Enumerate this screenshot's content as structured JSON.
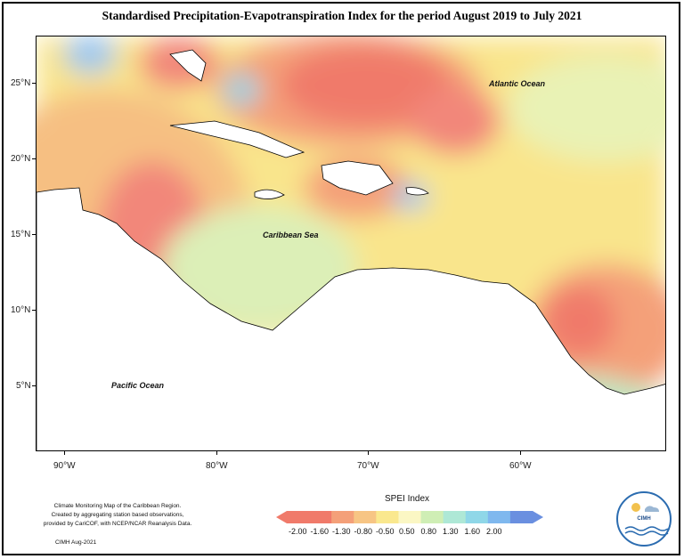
{
  "title": "Standardised Precipitation-Evapotranspiration Index for the period August 2019 to July 2021",
  "map": {
    "lat_labels": [
      "25°N",
      "20°N",
      "15°N",
      "10°N",
      "5°N"
    ],
    "lon_labels": [
      "90°W",
      "80°W",
      "70°W",
      "60°W"
    ],
    "region_labels": {
      "atlantic": "Atlantic Ocean",
      "caribbean": "Caribbean Sea",
      "pacific": "Pacific Ocean"
    }
  },
  "legend": {
    "title": "SPEI Index",
    "labels": [
      "-2.00",
      "-1.60",
      "-1.30",
      "-0.80",
      "-0.50",
      "0.50",
      "0.80",
      "1.30",
      "1.60",
      "2.00"
    ],
    "colors": [
      "#f07a6a",
      "#f4a079",
      "#f7c584",
      "#fae88e",
      "#fbf7c4",
      "#cfeeb5",
      "#aee8d6",
      "#8fd7e8",
      "#7fb8ee",
      "#6a8fe0"
    ]
  },
  "credit": {
    "line1": "Climate Monitoring Map of the Caribbean Region.",
    "line2": "Created by aggregating station based observations,",
    "line3": "provided by CariCOF, with NCEP/NCAR Reanalysis Data.",
    "date": "CIMH Aug-2021"
  },
  "logo": {
    "text": "CIMH"
  }
}
